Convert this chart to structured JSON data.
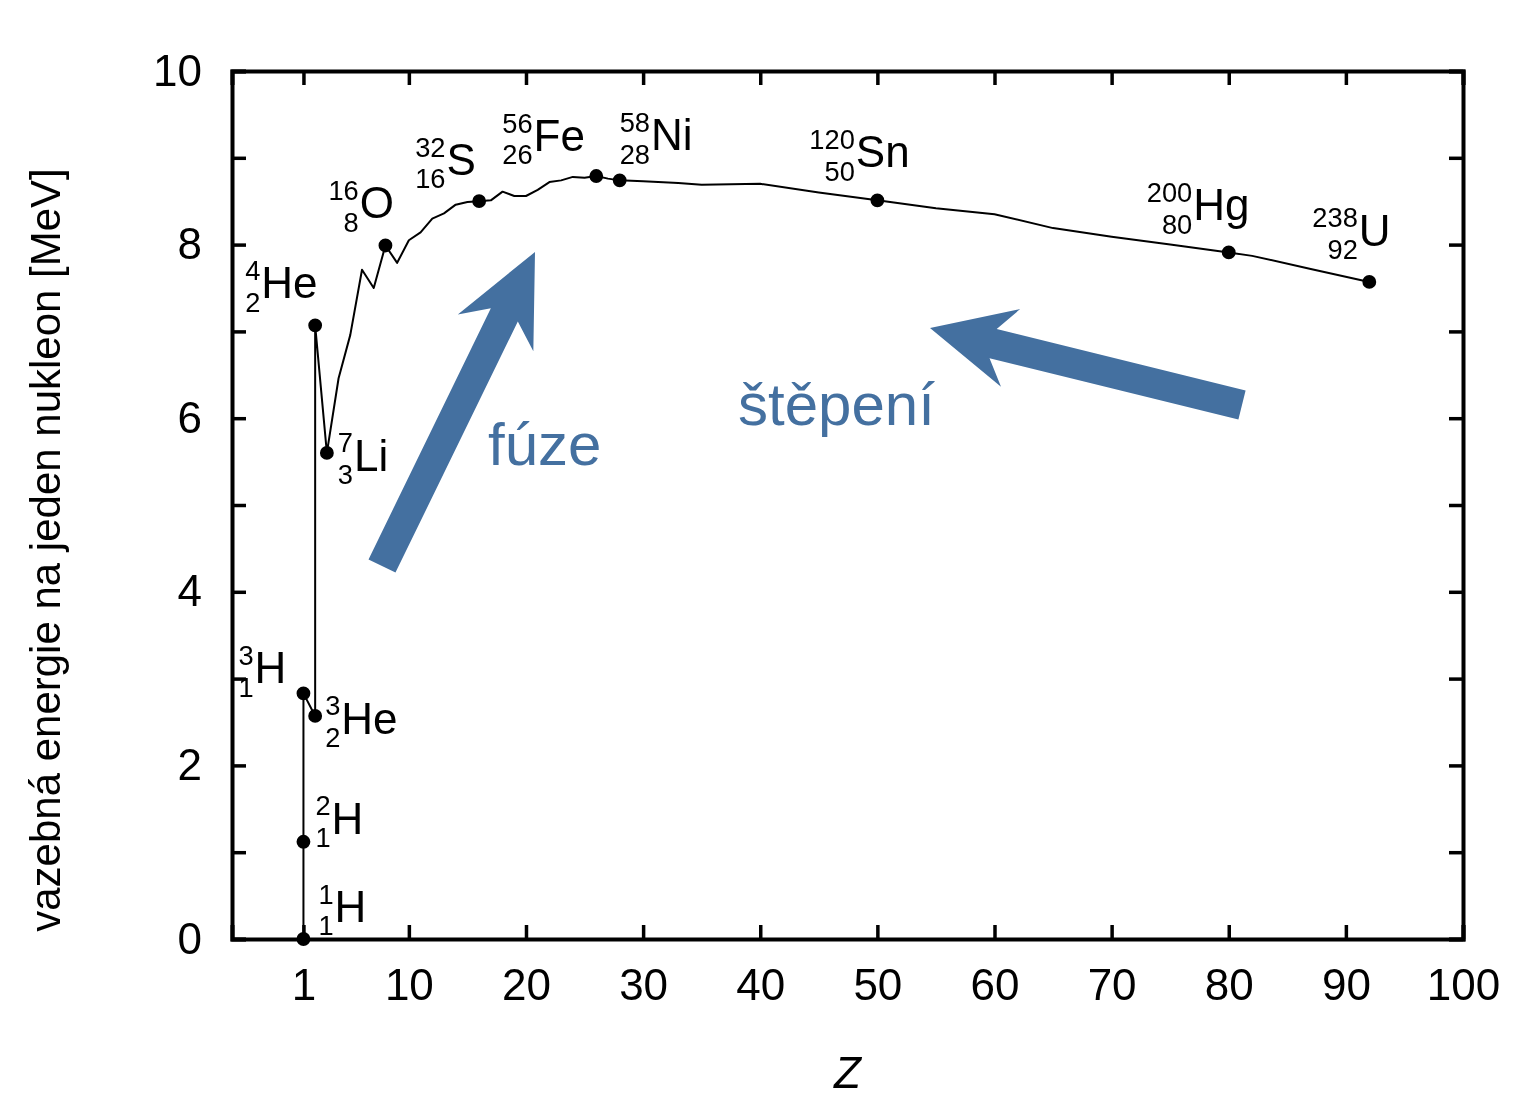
{
  "chart_data": {
    "type": "line",
    "xlabel": "Z",
    "ylabel": "vazebná energie na jeden nukleon [MeV]",
    "xlim": [
      -5.1,
      100
    ],
    "xticks": [
      1,
      10,
      20,
      30,
      40,
      50,
      60,
      70,
      80,
      90,
      100
    ],
    "ylim": [
      0,
      10
    ],
    "yticks": [
      0,
      {
        "value": 1,
        "label": null
      },
      2,
      {
        "value": 3,
        "label": null
      },
      4,
      {
        "value": 5,
        "label": null
      },
      6,
      {
        "value": 7,
        "label": null
      },
      8,
      {
        "value": 9,
        "label": null
      },
      10
    ],
    "grid": false,
    "series": [
      {
        "color": "#000000",
        "marker": "none",
        "x": [
          1,
          1,
          1,
          2,
          2,
          3,
          4,
          5,
          6,
          7,
          8,
          9,
          10,
          11,
          12,
          13,
          14,
          15,
          16,
          17,
          18,
          19,
          20,
          21,
          22,
          23,
          24,
          25,
          26,
          27,
          28,
          30,
          33,
          35,
          40,
          45,
          50,
          55,
          60,
          65,
          70,
          75,
          80,
          82,
          87,
          92
        ],
        "values": [
          0,
          1.12,
          2.83,
          2.57,
          7.07,
          5.6,
          6.46,
          6.96,
          7.71,
          7.5,
          7.99,
          7.79,
          8.05,
          8.14,
          8.3,
          8.36,
          8.46,
          8.49,
          8.5,
          8.51,
          8.61,
          8.56,
          8.56,
          8.63,
          8.72,
          8.74,
          8.78,
          8.77,
          8.79,
          8.76,
          8.74,
          8.73,
          8.71,
          8.69,
          8.7,
          8.6,
          8.51,
          8.42,
          8.35,
          8.19,
          8.09,
          8.0,
          7.91,
          7.87,
          7.72,
          7.57
        ]
      },
      {
        "type": "scatter",
        "color": "#000000",
        "marker": "circle",
        "x": [
          1,
          1,
          1,
          2,
          2,
          3,
          8,
          16,
          26,
          28,
          50,
          80,
          92
        ],
        "values": [
          0,
          1.12,
          2.83,
          2.57,
          7.07,
          5.6,
          7.99,
          8.5,
          8.79,
          8.74,
          8.51,
          7.91,
          7.57
        ]
      }
    ],
    "annotations": [
      {
        "text": "$^{1}$$_{1}$H",
        "x": 1,
        "y": 0
      },
      {
        "text": "$^{2}$$_{1}$H",
        "x": 1,
        "y": 1.12
      },
      {
        "text": "$^{3}$$_{1}$H",
        "x": 1,
        "y": 2.83
      },
      {
        "text": "$^{3}$$_{2}$He",
        "x": 2,
        "y": 2.57
      },
      {
        "text": "$^{4}$$_{2}$He",
        "x": 2,
        "y": 7.07
      },
      {
        "text": "$^{7}$$_{3}$Li",
        "x": 3,
        "y": 5.6
      },
      {
        "text": "$^{16}$$_{8}$O",
        "x": 8,
        "y": 7.99
      },
      {
        "text": "$^{32}$$_{16}$S",
        "x": 16,
        "y": 8.5
      },
      {
        "text": "$^{56}$$_{26}$Fe",
        "x": 26,
        "y": 8.79
      },
      {
        "text": "$^{58}$$_{28}$Ni",
        "x": 28,
        "y": 8.74
      },
      {
        "text": "$^{120}$$_{50}$Sn",
        "x": 50,
        "y": 8.51
      },
      {
        "text": "$^{200}$$_{80}$Hg",
        "x": 80,
        "y": 7.91
      },
      {
        "text": "$^{238}$$_{92}$U",
        "x": 92,
        "y": 7.57
      },
      "fúze",
      "štěpení"
    ]
  }
}
